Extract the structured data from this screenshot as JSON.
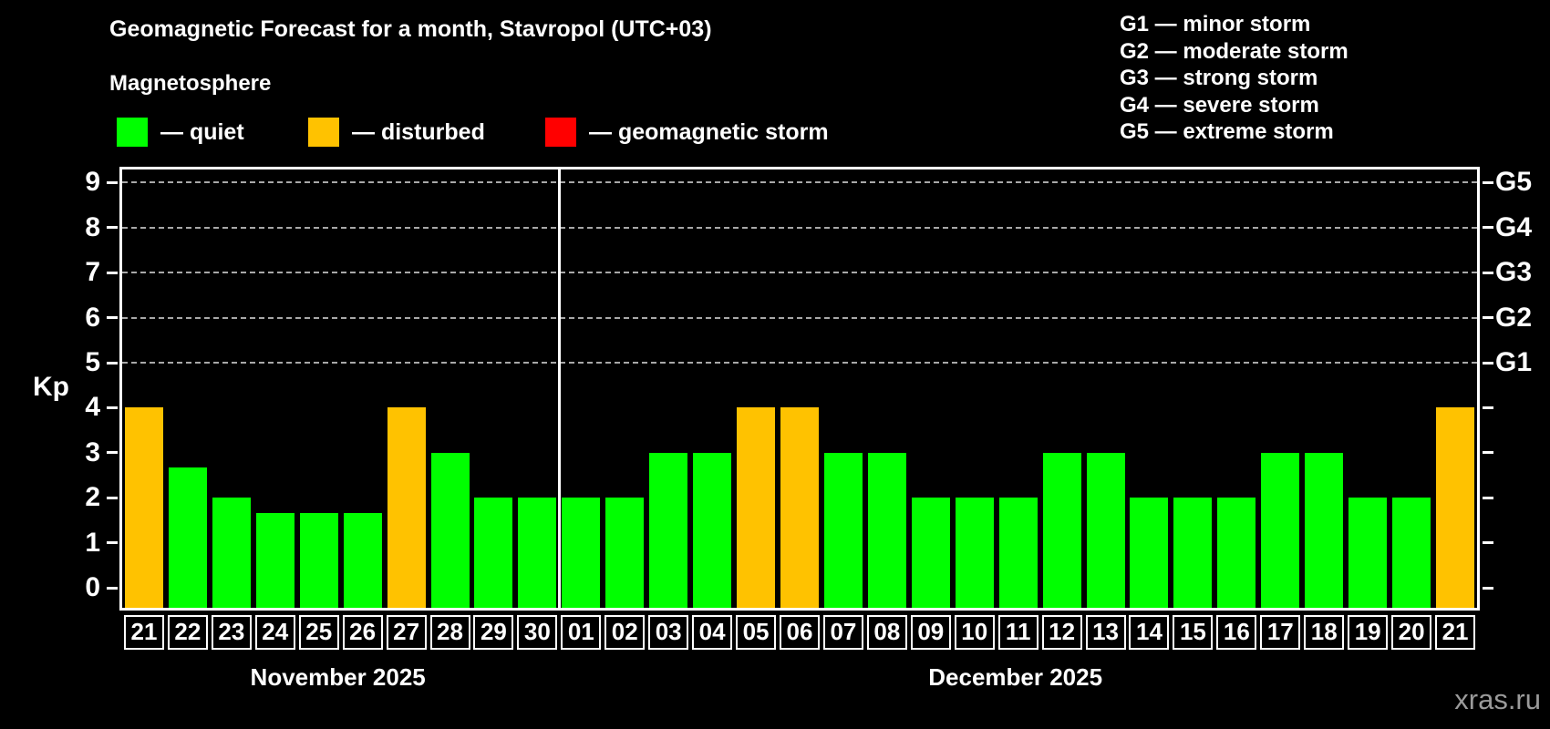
{
  "header": {
    "title": "Geomagnetic Forecast for a month, Stavropol (UTC+03)",
    "subtitle": "Magnetosphere"
  },
  "legend": {
    "items": [
      {
        "id": "quiet",
        "label": "— quiet",
        "color": "#00ff00"
      },
      {
        "id": "disturbed",
        "label": "— disturbed",
        "color": "#ffc200"
      },
      {
        "id": "storm",
        "label": "— geomagnetic storm",
        "color": "#ff0000"
      }
    ]
  },
  "g_scale_legend": [
    "G1 — minor storm",
    "G2 — moderate storm",
    "G3 — strong storm",
    "G4 — severe storm",
    "G5 — extreme storm"
  ],
  "watermark": "xras.ru",
  "chart_data": {
    "type": "bar",
    "ylabel": "Kp",
    "ylim": [
      0,
      9
    ],
    "y_ticks": [
      0,
      1,
      2,
      3,
      4,
      5,
      6,
      7,
      8,
      9
    ],
    "gridlines_at": [
      5,
      6,
      7,
      8,
      9
    ],
    "grid": "dashed",
    "legend_position": "top",
    "right_axis_labels": [
      {
        "kp": 5,
        "label": "G1"
      },
      {
        "kp": 6,
        "label": "G2"
      },
      {
        "kp": 7,
        "label": "G3"
      },
      {
        "kp": 8,
        "label": "G4"
      },
      {
        "kp": 9,
        "label": "G5"
      }
    ],
    "colors": {
      "quiet": "#00ff00",
      "disturbed": "#ffc200",
      "storm": "#ff0000"
    },
    "months": [
      {
        "label": "November 2025",
        "days": [
          {
            "day": "21",
            "kp": 4,
            "state": "disturbed"
          },
          {
            "day": "22",
            "kp": 2.67,
            "state": "quiet"
          },
          {
            "day": "23",
            "kp": 2,
            "state": "quiet"
          },
          {
            "day": "24",
            "kp": 1.67,
            "state": "quiet"
          },
          {
            "day": "25",
            "kp": 1.67,
            "state": "quiet"
          },
          {
            "day": "26",
            "kp": 1.67,
            "state": "quiet"
          },
          {
            "day": "27",
            "kp": 4,
            "state": "disturbed"
          },
          {
            "day": "28",
            "kp": 3,
            "state": "quiet"
          },
          {
            "day": "29",
            "kp": 2,
            "state": "quiet"
          },
          {
            "day": "30",
            "kp": 2,
            "state": "quiet"
          }
        ]
      },
      {
        "label": "December 2025",
        "days": [
          {
            "day": "01",
            "kp": 2,
            "state": "quiet"
          },
          {
            "day": "02",
            "kp": 2,
            "state": "quiet"
          },
          {
            "day": "03",
            "kp": 3,
            "state": "quiet"
          },
          {
            "day": "04",
            "kp": 3,
            "state": "quiet"
          },
          {
            "day": "05",
            "kp": 4,
            "state": "disturbed"
          },
          {
            "day": "06",
            "kp": 4,
            "state": "disturbed"
          },
          {
            "day": "07",
            "kp": 3,
            "state": "quiet"
          },
          {
            "day": "08",
            "kp": 3,
            "state": "quiet"
          },
          {
            "day": "09",
            "kp": 2,
            "state": "quiet"
          },
          {
            "day": "10",
            "kp": 2,
            "state": "quiet"
          },
          {
            "day": "11",
            "kp": 2,
            "state": "quiet"
          },
          {
            "day": "12",
            "kp": 3,
            "state": "quiet"
          },
          {
            "day": "13",
            "kp": 3,
            "state": "quiet"
          },
          {
            "day": "14",
            "kp": 2,
            "state": "quiet"
          },
          {
            "day": "15",
            "kp": 2,
            "state": "quiet"
          },
          {
            "day": "16",
            "kp": 2,
            "state": "quiet"
          },
          {
            "day": "17",
            "kp": 3,
            "state": "quiet"
          },
          {
            "day": "18",
            "kp": 3,
            "state": "quiet"
          },
          {
            "day": "19",
            "kp": 2,
            "state": "quiet"
          },
          {
            "day": "20",
            "kp": 2,
            "state": "quiet"
          },
          {
            "day": "21",
            "kp": 4,
            "state": "disturbed"
          }
        ]
      }
    ]
  }
}
